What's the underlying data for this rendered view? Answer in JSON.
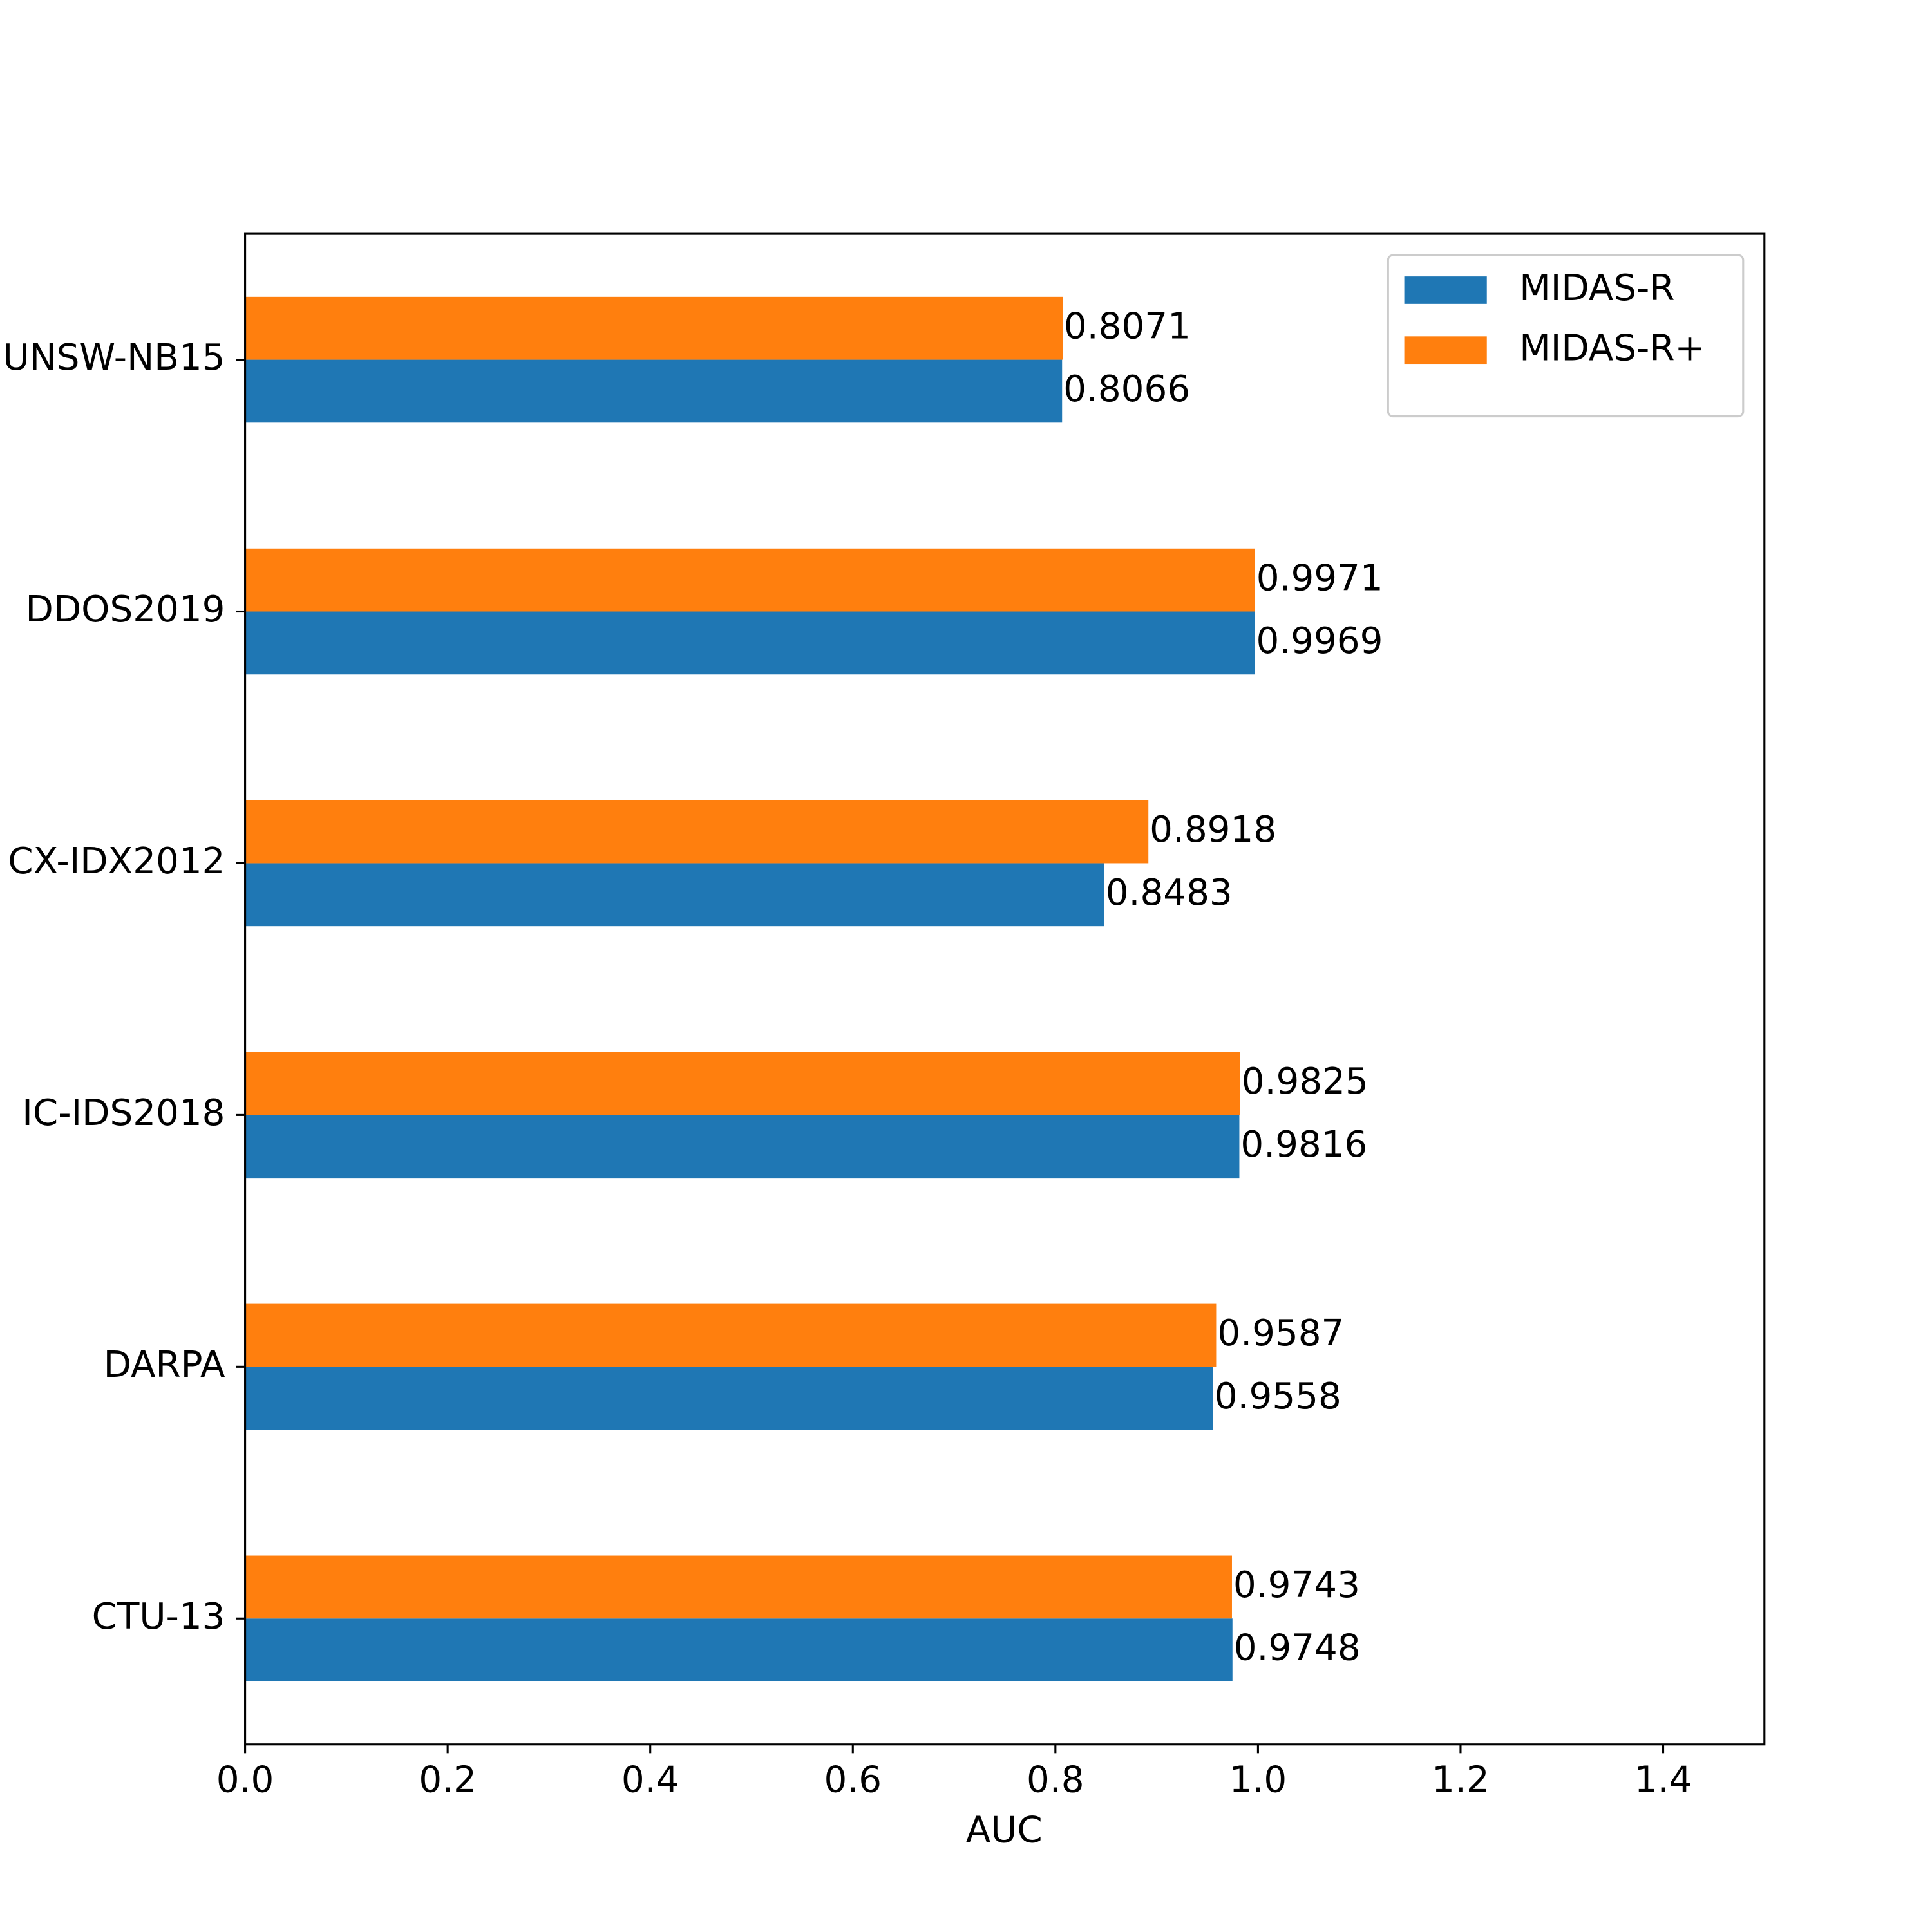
{
  "chart_data": {
    "type": "barh",
    "xlabel": "AUC",
    "categories": [
      "CTU-13",
      "DARPA",
      "IC-IDS2018",
      "CX-IDX2012",
      "DDOS2019",
      "UNSW-NB15"
    ],
    "series": [
      {
        "name": "MIDAS-R",
        "color": "#1f77b4",
        "values": [
          0.9748,
          0.9558,
          0.9816,
          0.8483,
          0.9969,
          0.8066
        ]
      },
      {
        "name": "MIDAS-R+",
        "color": "#ff7f0e",
        "values": [
          0.9743,
          0.9587,
          0.9825,
          0.8918,
          0.9971,
          0.8071
        ]
      }
    ],
    "xlim": [
      0,
      1.5
    ],
    "xticks": [
      {
        "value": 0,
        "label": "0.0"
      },
      {
        "value": 0.2,
        "label": "0.2"
      },
      {
        "value": 0.4,
        "label": "0.4"
      },
      {
        "value": 0.6,
        "label": "0.6"
      },
      {
        "value": 0.8,
        "label": "0.8"
      },
      {
        "value": 1,
        "label": "1.0"
      },
      {
        "value": 1.2,
        "label": "1.2"
      },
      {
        "value": 1.4,
        "label": "1.4"
      }
    ],
    "legend": "upper right",
    "value_labels_shown": true
  }
}
